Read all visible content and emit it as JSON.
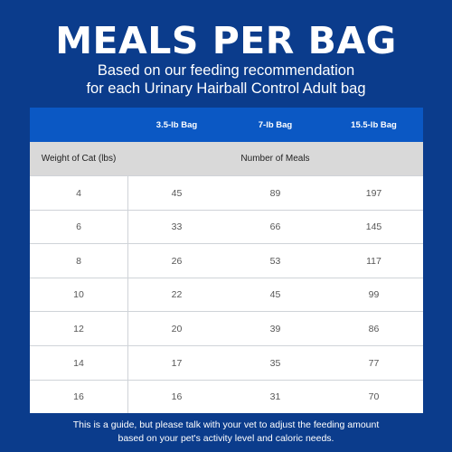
{
  "title": "MEALS PER BAG",
  "subtitle_line1": "Based on our feeding recommendation",
  "subtitle_line2": "for each Urinary Hairball Control Adult bag",
  "table": {
    "headers": [
      "",
      "3.5-lb Bag",
      "7-lb Bag",
      "15.5-lb Bag"
    ],
    "row_header_label": "Weight of Cat (lbs)",
    "group_label": "Number of Meals",
    "rows": [
      {
        "weight": "4",
        "bag_3_5": "45",
        "bag_7": "89",
        "bag_15_5": "197"
      },
      {
        "weight": "6",
        "bag_3_5": "33",
        "bag_7": "66",
        "bag_15_5": "145"
      },
      {
        "weight": "8",
        "bag_3_5": "26",
        "bag_7": "53",
        "bag_15_5": "117"
      },
      {
        "weight": "10",
        "bag_3_5": "22",
        "bag_7": "45",
        "bag_15_5": "99"
      },
      {
        "weight": "12",
        "bag_3_5": "20",
        "bag_7": "39",
        "bag_15_5": "86"
      },
      {
        "weight": "14",
        "bag_3_5": "17",
        "bag_7": "35",
        "bag_15_5": "77"
      },
      {
        "weight": "16",
        "bag_3_5": "16",
        "bag_7": "31",
        "bag_15_5": "70"
      }
    ]
  },
  "footer_line1": "This is a guide, but please talk with your vet to adjust the feeding amount",
  "footer_line2": "based on your pet's activity level and caloric needs.",
  "colors": {
    "background": "#0b3c8c",
    "header_row": "#0b58c4",
    "subheader_row": "#d9d9d9"
  }
}
